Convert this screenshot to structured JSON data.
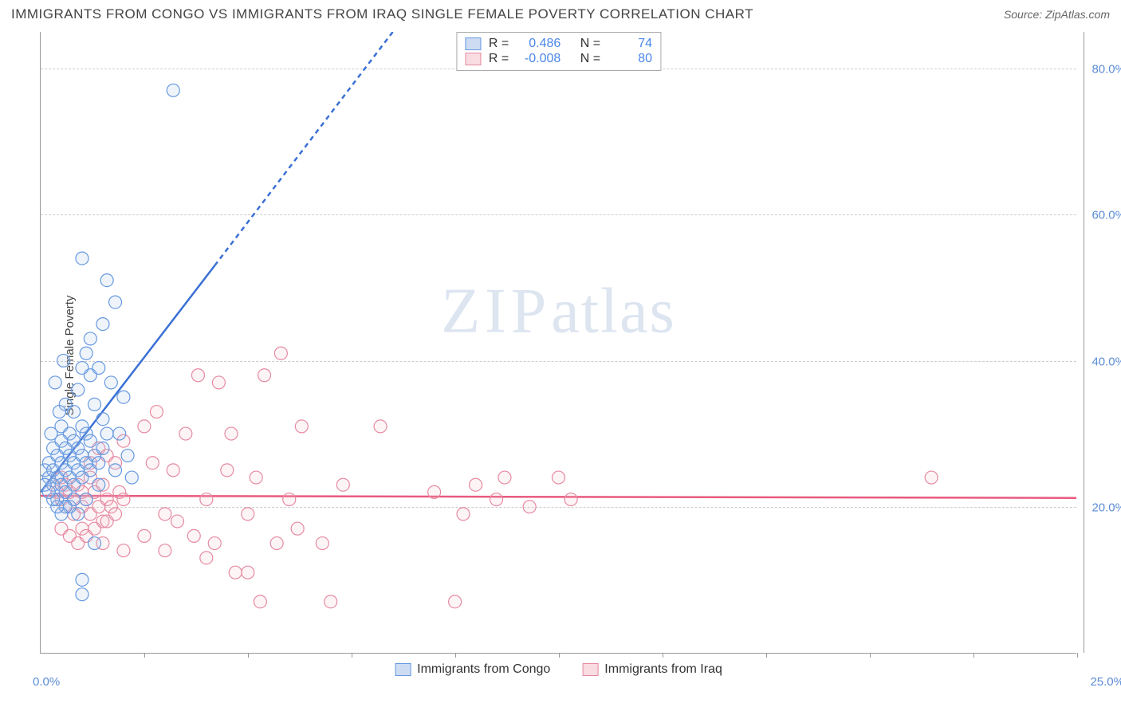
{
  "header": {
    "title": "IMMIGRANTS FROM CONGO VS IMMIGRANTS FROM IRAQ SINGLE FEMALE POVERTY CORRELATION CHART",
    "source": "Source: ZipAtlas.com"
  },
  "y_axis_label": "Single Female Poverty",
  "watermark": {
    "zip": "ZIP",
    "atlas": "atlas"
  },
  "chart": {
    "type": "scatter",
    "xlim": [
      0,
      25
    ],
    "ylim": [
      0,
      85
    ],
    "y_ticks": [
      20,
      40,
      60,
      80
    ],
    "y_tick_labels": [
      "20.0%",
      "40.0%",
      "60.0%",
      "80.0%"
    ],
    "x_minor_ticks": [
      2.5,
      5,
      7.5,
      10,
      12.5,
      15,
      17.5,
      20,
      22.5,
      25
    ],
    "x_min_label": "0.0%",
    "x_max_label": "25.0%",
    "background_color": "#ffffff",
    "grid_color": "#cccccc",
    "axis_color": "#999999",
    "tick_label_color": "#5b8dd6",
    "marker_radius": 8,
    "marker_stroke_width": 1.2,
    "marker_fill_opacity": 0.18,
    "trend_line_width": 2.5,
    "trend_dash": "6,5"
  },
  "series": {
    "congo": {
      "label": "Immigrants from Congo",
      "color_stroke": "#6699e0",
      "color_fill": "#a9c4eb",
      "swatch_border": "#6699e0",
      "swatch_fill": "#cddcf2",
      "trend_color": "#3a70d4",
      "R": "0.486",
      "N": "74",
      "trend": {
        "x1": 0,
        "y1": 22,
        "x2_solid": 4.2,
        "y2_solid": 53,
        "x2_dash": 8.5,
        "y2_dash": 85
      },
      "points": [
        [
          0.1,
          25
        ],
        [
          0.2,
          24
        ],
        [
          0.2,
          26
        ],
        [
          0.3,
          23
        ],
        [
          0.3,
          25
        ],
        [
          0.3,
          28
        ],
        [
          0.4,
          21
        ],
        [
          0.4,
          24
        ],
        [
          0.4,
          27
        ],
        [
          0.5,
          23
        ],
        [
          0.5,
          26
        ],
        [
          0.5,
          29
        ],
        [
          0.5,
          31
        ],
        [
          0.6,
          22
        ],
        [
          0.6,
          25
        ],
        [
          0.6,
          28
        ],
        [
          0.6,
          34
        ],
        [
          0.7,
          24
        ],
        [
          0.7,
          27
        ],
        [
          0.7,
          30
        ],
        [
          0.8,
          23
        ],
        [
          0.8,
          26
        ],
        [
          0.8,
          29
        ],
        [
          0.8,
          33
        ],
        [
          0.9,
          25
        ],
        [
          0.9,
          28
        ],
        [
          0.9,
          36
        ],
        [
          1.0,
          24
        ],
        [
          1.0,
          27
        ],
        [
          1.0,
          31
        ],
        [
          1.0,
          39
        ],
        [
          1.1,
          26
        ],
        [
          1.1,
          30
        ],
        [
          1.1,
          41
        ],
        [
          1.2,
          25
        ],
        [
          1.2,
          29
        ],
        [
          1.2,
          38
        ],
        [
          1.2,
          43
        ],
        [
          1.3,
          27
        ],
        [
          1.3,
          34
        ],
        [
          1.4,
          26
        ],
        [
          1.4,
          39
        ],
        [
          1.5,
          32
        ],
        [
          1.5,
          45
        ],
        [
          1.6,
          30
        ],
        [
          1.6,
          51
        ],
        [
          1.7,
          37
        ],
        [
          1.8,
          48
        ],
        [
          2.0,
          35
        ],
        [
          2.1,
          27
        ],
        [
          1.0,
          10
        ],
        [
          1.0,
          8
        ],
        [
          1.3,
          15
        ],
        [
          0.9,
          19
        ],
        [
          1.1,
          21
        ],
        [
          1.4,
          23
        ],
        [
          0.7,
          20
        ],
        [
          0.8,
          21
        ],
        [
          0.6,
          20
        ],
        [
          0.5,
          19
        ],
        [
          0.4,
          20
        ],
        [
          0.3,
          21
        ],
        [
          0.2,
          22
        ],
        [
          0.1,
          23
        ],
        [
          1.0,
          54
        ],
        [
          3.2,
          77
        ],
        [
          1.8,
          25
        ],
        [
          1.5,
          28
        ],
        [
          1.9,
          30
        ],
        [
          2.2,
          24
        ],
        [
          0.35,
          37
        ],
        [
          0.55,
          40
        ],
        [
          0.45,
          33
        ],
        [
          0.25,
          30
        ]
      ]
    },
    "iraq": {
      "label": "Immigrants from Iraq",
      "color_stroke": "#e68aa1",
      "color_fill": "#f5c3cf",
      "swatch_border": "#e68aa1",
      "swatch_fill": "#f9dbe2",
      "trend_color": "#e85a7f",
      "R": "-0.008",
      "N": "80",
      "trend": {
        "x1": 0,
        "y1": 21.5,
        "x2": 25,
        "y2": 21.2
      },
      "points": [
        [
          0.3,
          23
        ],
        [
          0.4,
          22
        ],
        [
          0.5,
          21
        ],
        [
          0.5,
          24
        ],
        [
          0.6,
          20
        ],
        [
          0.6,
          23
        ],
        [
          0.7,
          22
        ],
        [
          0.8,
          21
        ],
        [
          0.8,
          19
        ],
        [
          0.9,
          23
        ],
        [
          1.0,
          22
        ],
        [
          1.0,
          20
        ],
        [
          1.1,
          21
        ],
        [
          1.2,
          24
        ],
        [
          1.2,
          19
        ],
        [
          1.3,
          22
        ],
        [
          1.4,
          20
        ],
        [
          1.5,
          23
        ],
        [
          1.5,
          18
        ],
        [
          1.6,
          21
        ],
        [
          1.7,
          20
        ],
        [
          1.8,
          19
        ],
        [
          1.9,
          22
        ],
        [
          2.0,
          21
        ],
        [
          0.5,
          17
        ],
        [
          0.7,
          16
        ],
        [
          0.9,
          15
        ],
        [
          1.0,
          17
        ],
        [
          1.1,
          16
        ],
        [
          1.3,
          17
        ],
        [
          1.5,
          15
        ],
        [
          1.6,
          18
        ],
        [
          1.2,
          26
        ],
        [
          1.4,
          28
        ],
        [
          1.6,
          27
        ],
        [
          1.8,
          26
        ],
        [
          2.0,
          29
        ],
        [
          2.5,
          31
        ],
        [
          2.7,
          26
        ],
        [
          2.8,
          33
        ],
        [
          3.0,
          19
        ],
        [
          3.2,
          25
        ],
        [
          3.5,
          30
        ],
        [
          3.7,
          16
        ],
        [
          3.8,
          38
        ],
        [
          4.0,
          21
        ],
        [
          4.2,
          15
        ],
        [
          4.3,
          37
        ],
        [
          4.5,
          25
        ],
        [
          4.6,
          30
        ],
        [
          4.7,
          11
        ],
        [
          5.0,
          19
        ],
        [
          5.2,
          24
        ],
        [
          5.4,
          38
        ],
        [
          5.7,
          15
        ],
        [
          5.8,
          41
        ],
        [
          6.0,
          21
        ],
        [
          6.2,
          17
        ],
        [
          6.3,
          31
        ],
        [
          6.8,
          15
        ],
        [
          7.0,
          7
        ],
        [
          7.3,
          23
        ],
        [
          8.2,
          31
        ],
        [
          9.5,
          22
        ],
        [
          10.0,
          7
        ],
        [
          10.2,
          19
        ],
        [
          10.5,
          23
        ],
        [
          11.0,
          21
        ],
        [
          11.2,
          24
        ],
        [
          11.8,
          20
        ],
        [
          12.5,
          24
        ],
        [
          12.8,
          21
        ],
        [
          2.0,
          14
        ],
        [
          2.5,
          16
        ],
        [
          3.0,
          14
        ],
        [
          3.3,
          18
        ],
        [
          4.0,
          13
        ],
        [
          5.3,
          7
        ],
        [
          5.0,
          11
        ],
        [
          21.5,
          24
        ]
      ]
    }
  },
  "stats_labels": {
    "R": "R =",
    "N": "N ="
  }
}
